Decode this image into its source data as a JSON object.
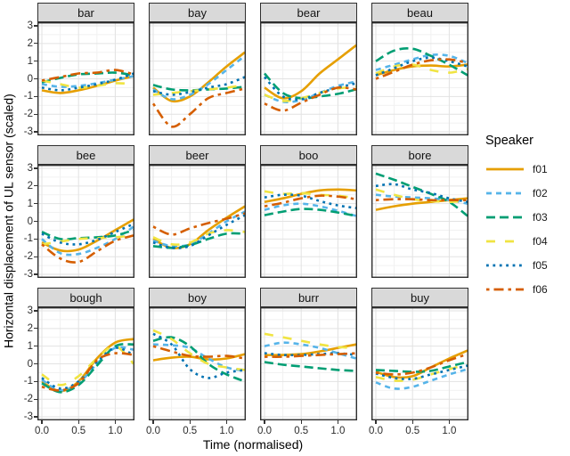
{
  "figure": {
    "ylabel": "Horizontal displacement of UL sensor (scaled)",
    "xlabel": "Time (normalised)",
    "legend_title": "Speaker"
  },
  "chart_data": {
    "type": "line",
    "title": "",
    "xlabel": "Time (normalised)",
    "ylabel": "Horizontal displacement of UL sensor (scaled)",
    "facet_layout": "3 rows x 4 cols",
    "legend_position": "right",
    "legend_title": "Speaker",
    "grid": "major and minor, light grey on white, dark panel border",
    "x": [
      0,
      0.25,
      0.5,
      0.75,
      1.0,
      1.25
    ],
    "xlim": [
      -0.06,
      1.32
    ],
    "ylim": [
      -3.2,
      3.2
    ],
    "x_ticks": [
      {
        "value": 0,
        "label": "0.0"
      },
      {
        "value": 0.5,
        "label": "0.5"
      },
      {
        "value": 1.0,
        "label": "1.0"
      }
    ],
    "y_ticks": [
      {
        "value": 3,
        "label": "3"
      },
      {
        "value": 2,
        "label": "2"
      },
      {
        "value": 1,
        "label": "1"
      },
      {
        "value": 0,
        "label": "0"
      },
      {
        "value": -1,
        "label": "-1"
      },
      {
        "value": -2,
        "label": "-2"
      },
      {
        "value": -3,
        "label": "-3"
      }
    ],
    "speakers": [
      {
        "name": "f01",
        "color": "#E69F00",
        "dash": "solid"
      },
      {
        "name": "f02",
        "color": "#56B4E9",
        "dash": "dash"
      },
      {
        "name": "f03",
        "color": "#009E73",
        "dash": "longdash"
      },
      {
        "name": "f04",
        "color": "#F0E442",
        "dash": "widedash"
      },
      {
        "name": "f05",
        "color": "#0072B2",
        "dash": "dot"
      },
      {
        "name": "f06",
        "color": "#D55E00",
        "dash": "dashdot"
      }
    ],
    "panels": [
      {
        "title": "bar",
        "series": {
          "f01": [
            -0.65,
            -0.8,
            -0.65,
            -0.4,
            -0.1,
            0.15
          ],
          "f02": [
            -0.3,
            -0.45,
            -0.4,
            -0.25,
            -0.05,
            0.15
          ],
          "f03": [
            -0.2,
            0.05,
            0.25,
            0.3,
            0.35,
            0.2
          ],
          "f04": [
            -0.1,
            -0.3,
            -0.5,
            -0.4,
            -0.25,
            -0.3
          ],
          "f05": [
            -0.5,
            -0.65,
            -0.5,
            -0.3,
            -0.05,
            0.3
          ],
          "f06": [
            -0.1,
            0.1,
            0.3,
            0.35,
            0.5,
            0.25
          ]
        }
      },
      {
        "title": "bay",
        "series": {
          "f01": [
            -0.5,
            -1.25,
            -1.0,
            -0.2,
            0.7,
            1.5
          ],
          "f02": [
            -0.6,
            -1.15,
            -0.9,
            -0.3,
            0.5,
            1.3
          ],
          "f03": [
            -0.35,
            -0.6,
            -0.65,
            -0.6,
            -0.55,
            -0.45
          ],
          "f04": [
            -0.9,
            -0.8,
            -0.7,
            -0.6,
            -0.5,
            -0.35
          ],
          "f05": [
            -0.7,
            -0.9,
            -0.75,
            -0.5,
            -0.3,
            0.1
          ],
          "f06": [
            -1.4,
            -2.7,
            -2.0,
            -1.1,
            -0.8,
            -0.55
          ]
        }
      },
      {
        "title": "bear",
        "series": {
          "f01": [
            -0.5,
            -1.1,
            -0.7,
            0.3,
            1.1,
            1.9
          ],
          "f02": [
            -0.9,
            -1.3,
            -1.2,
            -0.8,
            -0.4,
            -0.15
          ],
          "f03": [
            0.3,
            -0.8,
            -1.1,
            -1.0,
            -0.85,
            -0.6
          ],
          "f04": [
            -0.9,
            -1.25,
            -1.1,
            -0.8,
            -0.55,
            -0.45
          ],
          "f05": [
            0.1,
            -1.0,
            -1.15,
            -0.8,
            -0.5,
            -0.25
          ],
          "f06": [
            -1.4,
            -1.8,
            -1.35,
            -0.9,
            -0.5,
            -0.6
          ]
        }
      },
      {
        "title": "beau",
        "series": {
          "f01": [
            0.2,
            0.5,
            0.7,
            0.75,
            0.7,
            0.8
          ],
          "f02": [
            0.5,
            0.8,
            1.1,
            1.35,
            1.3,
            0.9
          ],
          "f03": [
            1.0,
            1.6,
            1.7,
            1.3,
            0.8,
            0.2
          ],
          "f04": [
            0.3,
            0.7,
            0.8,
            0.5,
            0.35,
            0.55
          ],
          "f05": [
            0.2,
            0.6,
            1.0,
            1.2,
            1.0,
            0.7
          ],
          "f06": [
            0.0,
            0.4,
            0.8,
            1.05,
            1.1,
            0.9
          ]
        }
      },
      {
        "title": "bee",
        "series": {
          "f01": [
            -1.2,
            -1.65,
            -1.6,
            -1.1,
            -0.5,
            0.1
          ],
          "f02": [
            -1.0,
            -1.8,
            -1.85,
            -1.5,
            -1.0,
            -0.3
          ],
          "f03": [
            -0.6,
            -1.0,
            -0.95,
            -0.9,
            -0.8,
            -0.5
          ],
          "f04": [
            -1.3,
            -1.15,
            -1.0,
            -0.95,
            -0.9,
            -0.8
          ],
          "f05": [
            -0.7,
            -1.2,
            -1.3,
            -1.05,
            -0.6,
            -0.15
          ],
          "f06": [
            -1.3,
            -2.1,
            -2.3,
            -1.7,
            -1.1,
            -0.8
          ]
        }
      },
      {
        "title": "beer",
        "series": {
          "f01": [
            -1.0,
            -1.5,
            -1.3,
            -0.5,
            0.2,
            0.85
          ],
          "f02": [
            -1.1,
            -1.4,
            -1.3,
            -0.7,
            0.0,
            0.55
          ],
          "f03": [
            -1.4,
            -1.5,
            -1.35,
            -1.0,
            -0.7,
            -0.7
          ],
          "f04": [
            -0.9,
            -1.3,
            -1.2,
            -0.7,
            -0.5,
            -0.6
          ],
          "f05": [
            -1.2,
            -1.5,
            -1.4,
            -0.8,
            -0.2,
            0.35
          ],
          "f06": [
            -0.3,
            -0.75,
            -0.4,
            -0.1,
            0.15,
            0.45
          ]
        }
      },
      {
        "title": "boo",
        "series": {
          "f01": [
            1.1,
            1.3,
            1.55,
            1.75,
            1.8,
            1.75
          ],
          "f02": [
            0.65,
            0.9,
            1.0,
            0.85,
            0.6,
            0.3
          ],
          "f03": [
            0.35,
            0.55,
            0.7,
            0.65,
            0.5,
            0.3
          ],
          "f04": [
            1.7,
            1.55,
            1.6,
            1.5,
            1.45,
            1.3
          ],
          "f05": [
            1.35,
            1.5,
            1.45,
            1.15,
            0.9,
            0.75
          ],
          "f06": [
            0.85,
            1.05,
            1.3,
            1.45,
            1.4,
            1.25
          ]
        }
      },
      {
        "title": "bore",
        "series": {
          "f01": [
            0.65,
            0.85,
            1.0,
            1.1,
            1.2,
            1.3
          ],
          "f02": [
            1.5,
            1.4,
            1.35,
            1.3,
            1.2,
            1.0
          ],
          "f03": [
            2.7,
            2.35,
            1.95,
            1.55,
            1.1,
            0.3
          ],
          "f04": [
            1.8,
            1.5,
            1.25,
            1.15,
            1.1,
            1.15
          ],
          "f05": [
            2.0,
            2.1,
            1.8,
            1.6,
            1.3,
            1.1
          ],
          "f06": [
            1.2,
            1.25,
            1.25,
            1.2,
            1.2,
            1.2
          ]
        }
      },
      {
        "title": "bough",
        "series": {
          "f01": [
            -1.0,
            -1.55,
            -1.0,
            0.3,
            1.2,
            1.4
          ],
          "f02": [
            -0.9,
            -1.5,
            -1.1,
            0.0,
            0.9,
            0.8
          ],
          "f03": [
            -1.1,
            -1.6,
            -1.2,
            -0.1,
            1.0,
            1.1
          ],
          "f04": [
            -0.6,
            -1.2,
            -0.7,
            0.3,
            1.0,
            0.0
          ],
          "f05": [
            -0.8,
            -1.4,
            -1.0,
            0.1,
            0.9,
            0.5
          ],
          "f06": [
            -1.3,
            -1.5,
            -1.1,
            0.2,
            0.6,
            0.5
          ]
        }
      },
      {
        "title": "boy",
        "series": {
          "f01": [
            0.2,
            0.35,
            0.4,
            0.25,
            0.3,
            0.55
          ],
          "f02": [
            1.1,
            1.05,
            0.9,
            0.3,
            -0.2,
            -0.4
          ],
          "f03": [
            1.3,
            1.5,
            1.0,
            0.0,
            -0.6,
            -1.0
          ],
          "f04": [
            1.9,
            1.4,
            0.6,
            0.0,
            -0.2,
            -0.35
          ],
          "f05": [
            1.7,
            1.1,
            -0.3,
            -0.8,
            -0.5,
            -0.35
          ],
          "f06": [
            1.0,
            0.7,
            0.45,
            0.4,
            0.45,
            0.3
          ]
        }
      },
      {
        "title": "burr",
        "series": {
          "f01": [
            0.5,
            0.5,
            0.55,
            0.7,
            0.9,
            1.1
          ],
          "f02": [
            1.0,
            1.2,
            1.1,
            0.9,
            0.6,
            0.3
          ],
          "f03": [
            0.1,
            -0.05,
            -0.15,
            -0.25,
            -0.35,
            -0.4
          ],
          "f04": [
            1.7,
            1.5,
            1.3,
            1.1,
            0.95,
            0.9
          ],
          "f05": [
            0.6,
            0.5,
            0.5,
            0.55,
            0.6,
            0.5
          ],
          "f06": [
            0.4,
            0.4,
            0.45,
            0.5,
            0.55,
            0.6
          ]
        }
      },
      {
        "title": "buy",
        "series": {
          "f01": [
            -0.45,
            -0.75,
            -0.7,
            -0.2,
            0.3,
            0.75
          ],
          "f02": [
            -1.05,
            -1.4,
            -1.3,
            -0.95,
            -0.6,
            -0.3
          ],
          "f03": [
            -0.35,
            -0.4,
            -0.45,
            -0.4,
            -0.15,
            0.1
          ],
          "f04": [
            -0.75,
            -0.95,
            -0.9,
            -0.6,
            -0.3,
            -0.05
          ],
          "f05": [
            -0.55,
            -0.8,
            -0.85,
            -0.6,
            -0.35,
            -0.1
          ],
          "f06": [
            -0.5,
            -0.6,
            -0.5,
            -0.2,
            0.2,
            0.55
          ]
        }
      }
    ]
  }
}
